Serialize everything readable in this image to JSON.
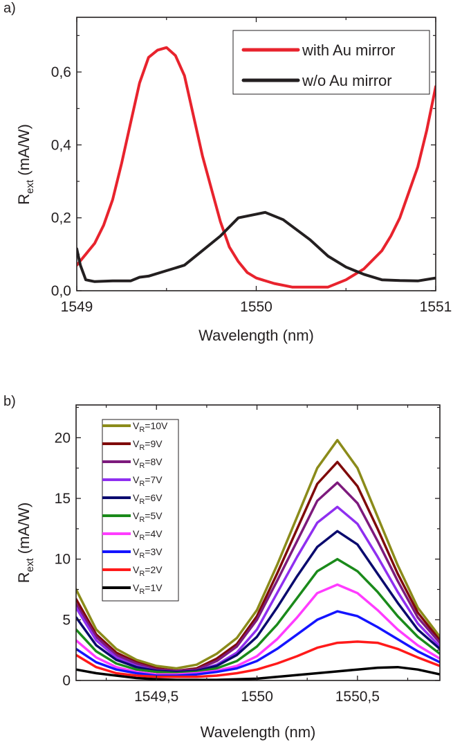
{
  "chart_data": [
    {
      "panel_label": "a)",
      "type": "line",
      "xlabel": "Wavelength (nm)",
      "ylabel_main": "R",
      "ylabel_sub": "ext",
      "ylabel_unit": " (mA/W)",
      "xlim": [
        1549,
        1551
      ],
      "ylim": [
        0,
        0.75
      ],
      "xticks": [
        1549,
        1550,
        1551
      ],
      "xtick_labels": [
        "1549",
        "1550",
        "1551"
      ],
      "yticks": [
        0,
        0.2,
        0.4,
        0.6
      ],
      "ytick_labels": [
        "0,0",
        "0,2",
        "0,4",
        "0,6"
      ],
      "legend_position": "top-right",
      "series": [
        {
          "name": "with Au mirror",
          "color": "#e8232d",
          "x": [
            1549,
            1549.05,
            1549.1,
            1549.15,
            1549.2,
            1549.25,
            1549.3,
            1549.35,
            1549.4,
            1549.45,
            1549.5,
            1549.55,
            1549.6,
            1549.65,
            1549.7,
            1549.75,
            1549.8,
            1549.85,
            1549.9,
            1549.95,
            1550,
            1550.1,
            1550.2,
            1550.3,
            1550.4,
            1550.5,
            1550.6,
            1550.7,
            1550.75,
            1550.8,
            1550.85,
            1550.9,
            1550.95,
            1551
          ],
          "y": [
            0.07,
            0.1,
            0.13,
            0.18,
            0.25,
            0.35,
            0.46,
            0.57,
            0.64,
            0.66,
            0.667,
            0.645,
            0.59,
            0.48,
            0.37,
            0.28,
            0.19,
            0.12,
            0.08,
            0.05,
            0.035,
            0.02,
            0.01,
            0.01,
            0.01,
            0.03,
            0.06,
            0.11,
            0.15,
            0.2,
            0.27,
            0.34,
            0.44,
            0.56
          ]
        },
        {
          "name": "w/o Au mirror",
          "color": "#231f20",
          "x": [
            1549,
            1549.02,
            1549.05,
            1549.1,
            1549.2,
            1549.3,
            1549.35,
            1549.4,
            1549.5,
            1549.6,
            1549.7,
            1549.8,
            1549.9,
            1550,
            1550.05,
            1550.15,
            1550.3,
            1550.4,
            1550.5,
            1550.6,
            1550.7,
            1550.8,
            1550.9,
            1551
          ],
          "y": [
            0.115,
            0.07,
            0.03,
            0.025,
            0.027,
            0.027,
            0.037,
            0.04,
            0.055,
            0.07,
            0.11,
            0.15,
            0.2,
            0.21,
            0.215,
            0.195,
            0.14,
            0.095,
            0.065,
            0.045,
            0.03,
            0.028,
            0.027,
            0.035
          ]
        }
      ]
    },
    {
      "panel_label": "b)",
      "type": "line",
      "xlabel": "Wavelength (nm)",
      "ylabel_main": "R",
      "ylabel_sub": "ext",
      "ylabel_unit": " (mA/W)",
      "xlim": [
        1549.1,
        1550.91
      ],
      "ylim": [
        0,
        22.7
      ],
      "xticks": [
        1549.5,
        1550,
        1550.5
      ],
      "xtick_labels": [
        "1549,5",
        "1550",
        "1550,5"
      ],
      "yticks": [
        0,
        5,
        10,
        15,
        20
      ],
      "ytick_labels": [
        "0",
        "5",
        "10",
        "15",
        "20"
      ],
      "legend_position": "top-left",
      "x": [
        1549.1,
        1549.2,
        1549.3,
        1549.4,
        1549.5,
        1549.6,
        1549.7,
        1549.8,
        1549.9,
        1550.0,
        1550.1,
        1550.2,
        1550.3,
        1550.4,
        1550.5,
        1550.6,
        1550.7,
        1550.8,
        1550.91
      ],
      "series": [
        {
          "name_main": "V",
          "name_sub": "R",
          "name_rest": "=10V",
          "color": "#8b8b1a",
          "y": [
            7.5,
            4.2,
            2.6,
            1.7,
            1.2,
            1.0,
            1.3,
            2.2,
            3.5,
            5.8,
            9.5,
            13.5,
            17.5,
            19.8,
            17.5,
            13.5,
            9.5,
            6.0,
            3.6
          ]
        },
        {
          "name_main": "V",
          "name_sub": "R",
          "name_rest": "=9V",
          "color": "#7f0a0a",
          "y": [
            6.7,
            3.8,
            2.3,
            1.5,
            1.0,
            0.8,
            1.0,
            1.8,
            3.0,
            5.3,
            8.8,
            12.5,
            16.2,
            18.0,
            16.0,
            12.5,
            8.8,
            5.6,
            3.3
          ]
        },
        {
          "name_main": "V",
          "name_sub": "R",
          "name_rest": "=8V",
          "color": "#7d1a7d",
          "y": [
            6.3,
            3.6,
            2.1,
            1.4,
            0.9,
            0.8,
            0.9,
            1.6,
            2.8,
            5.0,
            8.2,
            11.5,
            14.8,
            16.3,
            14.6,
            11.5,
            8.2,
            5.2,
            3.1
          ]
        },
        {
          "name_main": "V",
          "name_sub": "R",
          "name_rest": "=7V",
          "color": "#8f2ff0",
          "y": [
            6.0,
            3.3,
            1.9,
            1.2,
            0.8,
            0.7,
            0.8,
            1.3,
            2.3,
            4.2,
            7.2,
            10.2,
            13.0,
            14.3,
            12.9,
            10.2,
            7.3,
            4.7,
            2.8
          ]
        },
        {
          "name_main": "V",
          "name_sub": "R",
          "name_rest": "=6V",
          "color": "#0a0a6e",
          "y": [
            5.2,
            2.9,
            1.7,
            1.1,
            0.8,
            0.7,
            0.8,
            1.2,
            2.1,
            3.6,
            6.0,
            8.6,
            11.0,
            12.3,
            11.2,
            8.8,
            6.4,
            4.2,
            2.6
          ]
        },
        {
          "name_main": "V",
          "name_sub": "R",
          "name_rest": "=5V",
          "color": "#1a8a1a",
          "y": [
            4.2,
            2.4,
            1.4,
            0.9,
            0.7,
            0.6,
            0.7,
            1.0,
            1.6,
            2.8,
            4.6,
            6.8,
            9.0,
            10.0,
            9.0,
            7.3,
            5.3,
            3.6,
            2.2
          ]
        },
        {
          "name_main": "V",
          "name_sub": "R",
          "name_rest": "=4V",
          "color": "#ff3cff",
          "y": [
            3.3,
            1.9,
            1.1,
            0.7,
            0.5,
            0.5,
            0.6,
            0.8,
            1.2,
            2.0,
            3.4,
            5.2,
            7.2,
            7.9,
            7.2,
            5.8,
            4.2,
            2.9,
            1.8
          ]
        },
        {
          "name_main": "V",
          "name_sub": "R",
          "name_rest": "=3V",
          "color": "#1414ff",
          "y": [
            2.6,
            1.5,
            0.9,
            0.6,
            0.4,
            0.4,
            0.5,
            0.7,
            1.0,
            1.6,
            2.6,
            3.8,
            5.0,
            5.7,
            5.3,
            4.4,
            3.4,
            2.4,
            1.5
          ]
        },
        {
          "name_main": "V",
          "name_sub": "R",
          "name_rest": "=2V",
          "color": "#ff1a1a",
          "y": [
            2.1,
            1.1,
            0.6,
            0.4,
            0.3,
            0.3,
            0.3,
            0.4,
            0.6,
            0.9,
            1.4,
            2.0,
            2.7,
            3.1,
            3.2,
            3.1,
            2.6,
            1.9,
            1.2
          ]
        },
        {
          "name_main": "V",
          "name_sub": "R",
          "name_rest": "=1V",
          "color": "#000000",
          "y": [
            0.9,
            0.6,
            0.4,
            0.2,
            0.1,
            0.05,
            0.05,
            0.05,
            0.1,
            0.15,
            0.3,
            0.45,
            0.6,
            0.75,
            0.9,
            1.05,
            1.1,
            0.9,
            0.5
          ]
        }
      ]
    }
  ]
}
